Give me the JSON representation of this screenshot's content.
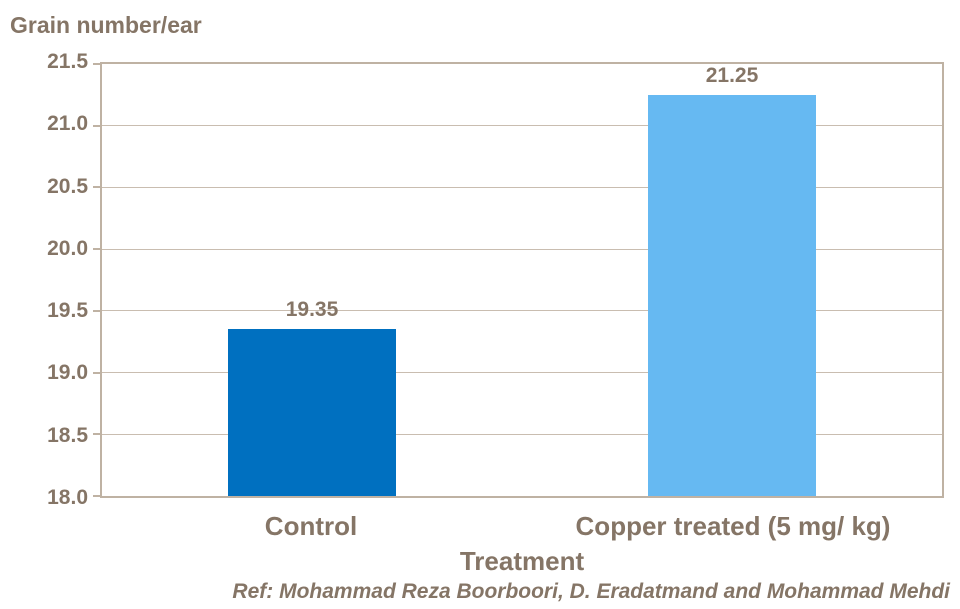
{
  "chart_data": {
    "type": "bar",
    "y_axis_title": "Grain number/ear",
    "x_axis_title": "Treatment",
    "categories": [
      "Control",
      "Copper treated (5 mg/ kg)"
    ],
    "values": [
      19.35,
      21.25
    ],
    "value_labels": [
      "19.35",
      "21.25"
    ],
    "bar_colors": [
      "#0070C0",
      "#66B9F2"
    ],
    "ylim": [
      18.0,
      21.5
    ],
    "ytick_step": 0.5,
    "ytick_labels": [
      "21.5",
      "21.0",
      "20.5",
      "20.0",
      "19.5",
      "19.0",
      "18.5",
      "18.0"
    ],
    "grid": "horizontal",
    "legend": "none"
  },
  "footer": {
    "reference": "Ref: Mohammad Reza Boorboori, D. Eradatmand and Mohammad Mehdi"
  },
  "colors": {
    "text": "#857566",
    "axis_border": "#BFB2A3",
    "gridline": "#C9BDB0",
    "bar_control": "#0070C0",
    "bar_copper_treated": "#66B9F2",
    "background": "#FFFFFF"
  }
}
